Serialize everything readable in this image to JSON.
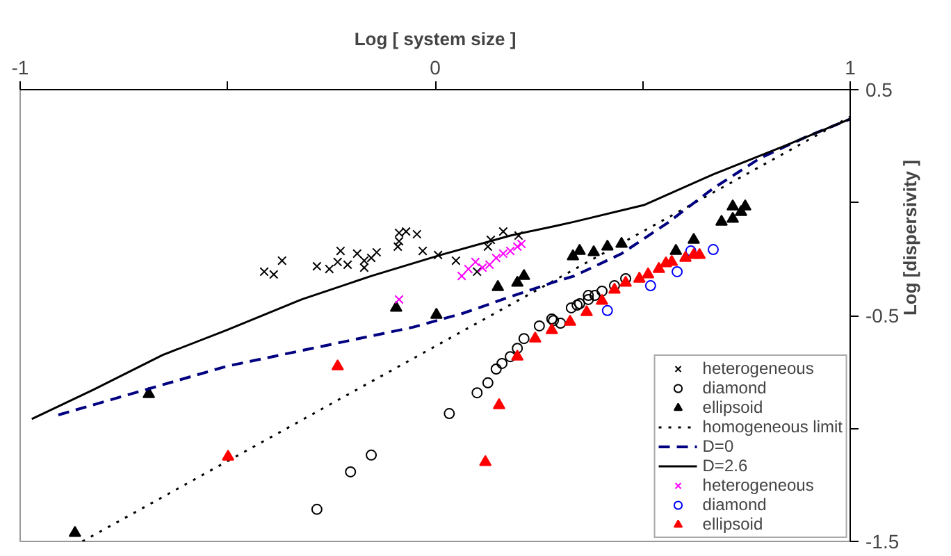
{
  "chart_data": {
    "type": "scatter",
    "xlabel": "Log [ system size ]",
    "ylabel": "Log [dispersivity ]",
    "xlim": [
      -1,
      1
    ],
    "ylim": [
      -1.5,
      0.5
    ],
    "xticks": [
      -1,
      {
        "value": -0.5,
        "label": null
      },
      0,
      {
        "value": 0.5,
        "label": null
      },
      1
    ],
    "yticks": [
      0.5,
      {
        "value": 0,
        "label": null
      },
      -0.5,
      {
        "value": -1,
        "label": null
      },
      -1.5
    ],
    "grid": false,
    "legend": "bottom right",
    "series": [
      {
        "name": "heterogeneous",
        "color": "#000000",
        "marker": "cross",
        "x": [
          -0.412,
          -0.389,
          -0.369,
          -0.285,
          -0.255,
          -0.228,
          -0.235,
          -0.211,
          -0.188,
          -0.171,
          -0.171,
          -0.154,
          -0.141,
          -0.09,
          -0.087,
          -0.07,
          -0.087,
          -0.044,
          -0.03,
          0.007,
          0.05,
          0.101,
          0.127,
          0.134,
          0.164,
          0.201
        ],
        "values": [
          -0.306,
          -0.318,
          -0.257,
          -0.282,
          -0.294,
          -0.214,
          -0.263,
          -0.275,
          -0.226,
          -0.257,
          -0.288,
          -0.245,
          -0.22,
          -0.195,
          -0.134,
          -0.128,
          -0.171,
          -0.14,
          -0.214,
          -0.232,
          -0.257,
          -0.306,
          -0.195,
          -0.165,
          -0.128,
          -0.146
        ]
      },
      {
        "name": "diamond",
        "color": "#000000",
        "marker": "circle",
        "x": [
          -0.285,
          -0.204,
          -0.154,
          0.034,
          0.101,
          0.127,
          0.147,
          0.161,
          0.181,
          0.198,
          0.214,
          0.251,
          0.281,
          0.285,
          0.302,
          0.328,
          0.342,
          0.348,
          0.369,
          0.369,
          0.385,
          0.402,
          0.432,
          0.449,
          0.459
        ],
        "values": [
          -1.358,
          -1.192,
          -1.118,
          -0.934,
          -0.842,
          -0.798,
          -0.737,
          -0.712,
          -0.682,
          -0.645,
          -0.602,
          -0.546,
          -0.515,
          -0.522,
          -0.534,
          -0.466,
          -0.454,
          -0.448,
          -0.429,
          -0.411,
          -0.411,
          -0.392,
          -0.368,
          null,
          -0.337
        ]
      },
      {
        "name": "ellipsoid",
        "color": "#000000",
        "marker": "triangle",
        "x": [
          -0.868,
          -0.69,
          -0.094,
          0.003,
          0.151,
          0.198,
          0.214,
          0.332,
          0.348,
          0.382,
          0.415,
          0.449,
          0.58,
          0.623,
          0.69,
          0.717,
          0.717,
          0.737,
          0.747
        ],
        "values": [
          -1.463,
          -0.848,
          -0.466,
          -0.497,
          -0.374,
          -0.355,
          -0.325,
          -0.238,
          -0.214,
          -0.22,
          -0.195,
          -0.183,
          -0.214,
          -0.165,
          -0.085,
          -0.017,
          -0.072,
          -0.042,
          -0.017
        ]
      },
      {
        "name": "homogeneous limit",
        "color": "#000000",
        "type": "line",
        "line_style": "dotted",
        "x": [
          -0.85,
          1
        ],
        "values": [
          -1.5,
          0.38
        ]
      },
      {
        "name": "D=0",
        "color": "#000080",
        "type": "line",
        "line_style": "dashed",
        "x": [
          -0.908,
          -0.503,
          -0.054,
          0.067,
          0.181,
          0.291,
          0.335,
          0.449,
          0.559,
          0.67,
          0.784,
          0.894,
          1
        ],
        "values": [
          -0.94,
          -0.725,
          -0.552,
          -0.49,
          -0.417,
          -0.349,
          -0.325,
          -0.226,
          -0.091,
          0.063,
          0.198,
          0.291,
          0.37
        ]
      },
      {
        "name": "D=2.6",
        "color": "#000000",
        "type": "line",
        "line_style": "solid",
        "x": [
          -0.972,
          -0.824,
          -0.657,
          -0.503,
          -0.322,
          -0.154,
          0.013,
          0.181,
          0.291,
          0.335,
          0.503,
          0.67,
          0.838,
          1
        ],
        "values": [
          -0.958,
          -0.829,
          -0.675,
          -0.565,
          -0.429,
          -0.325,
          -0.232,
          -0.146,
          -0.103,
          -0.085,
          -0.011,
          0.125,
          0.248,
          0.37
        ]
      },
      {
        "name": "heterogeneous",
        "color": "#ff00ff",
        "marker": "cross",
        "x": [
          -0.087,
          0.064,
          0.08,
          0.097,
          0.114,
          0.131,
          0.147,
          0.164,
          0.181,
          0.198,
          0.208
        ],
        "values": [
          -0.429,
          -0.325,
          -0.294,
          -0.263,
          -0.288,
          -0.275,
          -0.245,
          -0.226,
          -0.214,
          -0.195,
          -0.183
        ]
      },
      {
        "name": "diamond",
        "color": "#0000ff",
        "marker": "circle",
        "x": [
          0.415,
          0.519,
          0.583,
          0.616,
          0.67
        ],
        "values": [
          -0.478,
          -0.368,
          -0.306,
          -0.214,
          -0.208
        ]
      },
      {
        "name": "ellipsoid",
        "color": "#ff0000",
        "marker": "triangle",
        "x": [
          -0.499,
          -0.235,
          0.121,
          0.154,
          0.198,
          0.241,
          0.281,
          0.325,
          0.365,
          0.402,
          0.432,
          0.459,
          0.492,
          0.513,
          0.539,
          0.556,
          0.57,
          0.603,
          0.623,
          0.637
        ],
        "values": [
          -1.125,
          -0.725,
          -1.149,
          -0.897,
          -0.682,
          -0.602,
          -0.565,
          -0.528,
          -0.485,
          -0.435,
          -0.386,
          -0.355,
          -0.337,
          -0.318,
          -0.294,
          -0.269,
          -0.263,
          -0.245,
          -0.232,
          -0.232
        ]
      }
    ]
  }
}
